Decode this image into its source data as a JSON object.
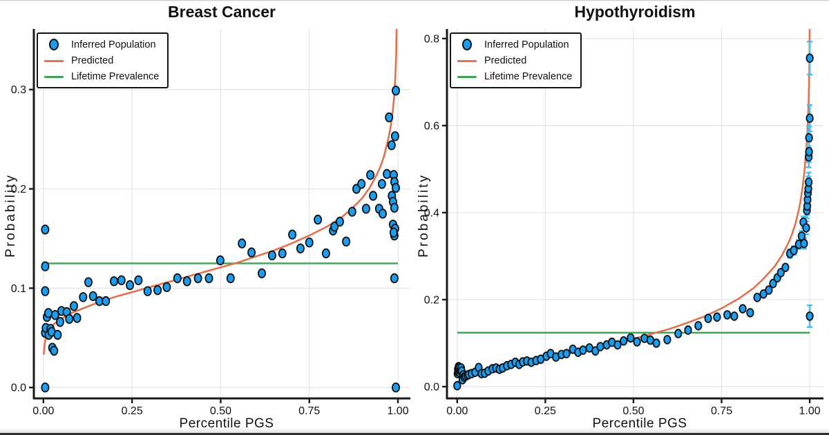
{
  "colors": {
    "marker_fill": "#1B9DF0",
    "marker_stroke": "#101010",
    "predicted_line": "#E0714C",
    "prevalence_line": "#3EA453",
    "error_bar": "#49BFF5",
    "grid": "#e3e3e3",
    "spine": "#1a1a1a"
  },
  "chart_data": [
    {
      "type": "scatter",
      "title": "Breast Cancer",
      "xlabel": "Percentile PGS",
      "ylabel": "Probability",
      "legend": [
        {
          "label": "Inferred Population",
          "kind": "marker",
          "color": "#1B9DF0"
        },
        {
          "label": "Predicted",
          "kind": "line",
          "color": "#E0714C"
        },
        {
          "label": "Lifetime Prevalence",
          "kind": "line",
          "color": "#3EA453"
        }
      ],
      "legend_position": "top-left",
      "grid": true,
      "xlim": [
        -0.027,
        1.035
      ],
      "ylim": [
        -0.011,
        0.361
      ],
      "xticks": {
        "values": [
          0,
          0.25,
          0.5,
          0.75,
          1.0
        ],
        "labels": [
          "0.00",
          "0.25",
          "0.50",
          "0.75",
          "1.00"
        ]
      },
      "yticks": {
        "values": [
          0,
          0.1,
          0.2,
          0.3
        ],
        "labels": [
          "0.0",
          "0.1",
          "0.2",
          "0.3"
        ]
      },
      "lifetime_prevalence": 0.125,
      "series": {
        "inferred_population": [
          [
            0.005,
            0.0
          ],
          [
            0.005,
            0.055
          ],
          [
            0.007,
            0.06
          ],
          [
            0.005,
            0.097
          ],
          [
            0.005,
            0.122
          ],
          [
            0.005,
            0.159
          ],
          [
            0.01,
            0.071
          ],
          [
            0.014,
            0.075
          ],
          [
            0.015,
            0.053
          ],
          [
            0.02,
            0.059
          ],
          [
            0.023,
            0.056
          ],
          [
            0.025,
            0.04
          ],
          [
            0.03,
            0.037
          ],
          [
            0.033,
            0.073
          ],
          [
            0.04,
            0.053
          ],
          [
            0.047,
            0.066
          ],
          [
            0.051,
            0.077
          ],
          [
            0.066,
            0.076
          ],
          [
            0.073,
            0.069
          ],
          [
            0.086,
            0.082
          ],
          [
            0.095,
            0.07
          ],
          [
            0.112,
            0.091
          ],
          [
            0.127,
            0.106
          ],
          [
            0.14,
            0.092
          ],
          [
            0.158,
            0.087
          ],
          [
            0.176,
            0.087
          ],
          [
            0.199,
            0.107
          ],
          [
            0.22,
            0.108
          ],
          [
            0.244,
            0.103
          ],
          [
            0.268,
            0.108
          ],
          [
            0.294,
            0.097
          ],
          [
            0.322,
            0.098
          ],
          [
            0.348,
            0.101
          ],
          [
            0.378,
            0.11
          ],
          [
            0.405,
            0.107
          ],
          [
            0.436,
            0.11
          ],
          [
            0.467,
            0.11
          ],
          [
            0.499,
            0.128
          ],
          [
            0.528,
            0.11
          ],
          [
            0.56,
            0.145
          ],
          [
            0.587,
            0.136
          ],
          [
            0.616,
            0.115
          ],
          [
            0.645,
            0.133
          ],
          [
            0.674,
            0.135
          ],
          [
            0.702,
            0.154
          ],
          [
            0.725,
            0.14
          ],
          [
            0.75,
            0.146
          ],
          [
            0.774,
            0.169
          ],
          [
            0.797,
            0.135
          ],
          [
            0.817,
            0.158
          ],
          [
            0.821,
            0.162
          ],
          [
            0.836,
            0.167
          ],
          [
            0.854,
            0.147
          ],
          [
            0.871,
            0.177
          ],
          [
            0.883,
            0.2
          ],
          [
            0.897,
            0.205
          ],
          [
            0.91,
            0.18
          ],
          [
            0.922,
            0.214
          ],
          [
            0.93,
            0.193
          ],
          [
            0.947,
            0.18
          ],
          [
            0.955,
            0.205
          ],
          [
            0.957,
            0.175
          ],
          [
            0.969,
            0.215
          ],
          [
            0.975,
            0.272
          ],
          [
            0.982,
            0.244
          ],
          [
            0.983,
            0.193
          ],
          [
            0.986,
            0.187
          ],
          [
            0.986,
            0.164
          ],
          [
            0.988,
            0.214
          ],
          [
            0.99,
            0.207
          ],
          [
            0.99,
            0.181
          ],
          [
            0.99,
            0.153
          ],
          [
            0.992,
            0.253
          ],
          [
            0.992,
            0.16
          ],
          [
            0.994,
            0.299
          ],
          [
            0.994,
            0.201
          ],
          [
            0.988,
            0.156
          ],
          [
            0.99,
            0.11
          ],
          [
            0.994,
            0.0
          ]
        ],
        "predicted": [
          [
            0.001,
            0.033
          ],
          [
            0.003,
            0.042
          ],
          [
            0.006,
            0.049
          ],
          [
            0.01,
            0.054
          ],
          [
            0.02,
            0.06
          ],
          [
            0.03,
            0.064
          ],
          [
            0.05,
            0.069
          ],
          [
            0.08,
            0.075
          ],
          [
            0.1,
            0.078
          ],
          [
            0.15,
            0.085
          ],
          [
            0.2,
            0.091
          ],
          [
            0.25,
            0.096
          ],
          [
            0.3,
            0.101
          ],
          [
            0.35,
            0.106
          ],
          [
            0.4,
            0.111
          ],
          [
            0.45,
            0.116
          ],
          [
            0.5,
            0.121
          ],
          [
            0.55,
            0.126
          ],
          [
            0.6,
            0.132
          ],
          [
            0.65,
            0.138
          ],
          [
            0.7,
            0.145
          ],
          [
            0.75,
            0.153
          ],
          [
            0.8,
            0.162
          ],
          [
            0.84,
            0.171
          ],
          [
            0.87,
            0.18
          ],
          [
            0.9,
            0.191
          ],
          [
            0.92,
            0.201
          ],
          [
            0.94,
            0.214
          ],
          [
            0.95,
            0.222
          ],
          [
            0.96,
            0.232
          ],
          [
            0.97,
            0.246
          ],
          [
            0.975,
            0.254
          ],
          [
            0.98,
            0.264
          ],
          [
            0.985,
            0.277
          ],
          [
            0.99,
            0.295
          ],
          [
            0.993,
            0.315
          ],
          [
            0.995,
            0.335
          ],
          [
            0.996,
            0.36
          ],
          [
            0.997,
            0.4
          ]
        ]
      },
      "error_bars": []
    },
    {
      "type": "scatter",
      "title": "Hypothyroidism",
      "xlabel": "Percentile PGS",
      "ylabel": "Probability",
      "legend": [
        {
          "label": "Inferred Population",
          "kind": "marker",
          "color": "#1B9DF0"
        },
        {
          "label": "Predicted",
          "kind": "line",
          "color": "#E0714C"
        },
        {
          "label": "Lifetime Prevalence",
          "kind": "line",
          "color": "#3EA453"
        }
      ],
      "legend_position": "top-left",
      "grid": true,
      "xlim": [
        -0.029,
        1.039
      ],
      "ylim": [
        -0.027,
        0.822
      ],
      "xticks": {
        "values": [
          0,
          0.25,
          0.5,
          0.75,
          1.0
        ],
        "labels": [
          "0.00",
          "0.25",
          "0.50",
          "0.75",
          "1.00"
        ]
      },
      "yticks": {
        "values": [
          0,
          0.2,
          0.4,
          0.6,
          0.8
        ],
        "labels": [
          "0.0",
          "0.2",
          "0.4",
          "0.6",
          "0.8"
        ]
      },
      "lifetime_prevalence": 0.124,
      "series": {
        "inferred_population": [
          [
            0.0,
            0.002
          ],
          [
            0.001,
            0.03
          ],
          [
            0.002,
            0.04
          ],
          [
            0.003,
            0.034
          ],
          [
            0.004,
            0.046
          ],
          [
            0.005,
            0.039
          ],
          [
            0.006,
            0.044
          ],
          [
            0.007,
            0.032
          ],
          [
            0.009,
            0.037
          ],
          [
            0.011,
            0.043
          ],
          [
            0.013,
            0.036
          ],
          [
            0.015,
            0.016
          ],
          [
            0.017,
            0.027
          ],
          [
            0.02,
            0.022
          ],
          [
            0.024,
            0.024
          ],
          [
            0.029,
            0.026
          ],
          [
            0.033,
            0.028
          ],
          [
            0.041,
            0.03
          ],
          [
            0.051,
            0.033
          ],
          [
            0.061,
            0.044
          ],
          [
            0.069,
            0.03
          ],
          [
            0.078,
            0.031
          ],
          [
            0.088,
            0.036
          ],
          [
            0.1,
            0.041
          ],
          [
            0.11,
            0.043
          ],
          [
            0.12,
            0.04
          ],
          [
            0.129,
            0.043
          ],
          [
            0.141,
            0.048
          ],
          [
            0.153,
            0.051
          ],
          [
            0.165,
            0.056
          ],
          [
            0.176,
            0.051
          ],
          [
            0.186,
            0.057
          ],
          [
            0.198,
            0.059
          ],
          [
            0.21,
            0.056
          ],
          [
            0.224,
            0.06
          ],
          [
            0.237,
            0.063
          ],
          [
            0.253,
            0.07
          ],
          [
            0.265,
            0.076
          ],
          [
            0.28,
            0.068
          ],
          [
            0.296,
            0.074
          ],
          [
            0.31,
            0.076
          ],
          [
            0.328,
            0.086
          ],
          [
            0.343,
            0.079
          ],
          [
            0.357,
            0.084
          ],
          [
            0.375,
            0.089
          ],
          [
            0.392,
            0.082
          ],
          [
            0.406,
            0.092
          ],
          [
            0.424,
            0.096
          ],
          [
            0.439,
            0.102
          ],
          [
            0.455,
            0.096
          ],
          [
            0.472,
            0.105
          ],
          [
            0.492,
            0.112
          ],
          [
            0.51,
            0.103
          ],
          [
            0.531,
            0.111
          ],
          [
            0.548,
            0.107
          ],
          [
            0.565,
            0.1
          ],
          [
            0.596,
            0.108
          ],
          [
            0.627,
            0.122
          ],
          [
            0.655,
            0.13
          ],
          [
            0.684,
            0.14
          ],
          [
            0.712,
            0.157
          ],
          [
            0.737,
            0.16
          ],
          [
            0.766,
            0.165
          ],
          [
            0.786,
            0.162
          ],
          [
            0.81,
            0.179
          ],
          [
            0.831,
            0.17
          ],
          [
            0.851,
            0.205
          ],
          [
            0.869,
            0.213
          ],
          [
            0.884,
            0.222
          ],
          [
            0.896,
            0.237
          ],
          [
            0.908,
            0.25
          ],
          [
            0.918,
            0.262
          ],
          [
            0.931,
            0.274
          ],
          [
            0.944,
            0.306
          ],
          [
            0.955,
            0.313
          ],
          [
            0.969,
            0.327
          ],
          [
            0.977,
            0.346
          ],
          [
            0.982,
            0.378
          ],
          [
            0.984,
            0.329
          ],
          [
            0.99,
            0.365
          ],
          [
            0.992,
            0.405
          ],
          [
            0.993,
            0.415
          ],
          [
            0.994,
            0.43
          ],
          [
            0.995,
            0.445
          ],
          [
            0.996,
            0.455
          ],
          [
            0.997,
            0.47
          ],
          [
            0.997,
            0.528
          ],
          [
            0.998,
            0.54
          ],
          [
            0.998,
            0.572
          ],
          [
            1.0,
            0.617
          ],
          [
            1.0,
            0.755
          ],
          [
            1.0,
            0.162
          ]
        ],
        "predicted": [
          [
            0.0,
            0.01
          ],
          [
            0.02,
            0.021
          ],
          [
            0.05,
            0.03
          ],
          [
            0.1,
            0.04
          ],
          [
            0.15,
            0.049
          ],
          [
            0.2,
            0.057
          ],
          [
            0.25,
            0.065
          ],
          [
            0.3,
            0.074
          ],
          [
            0.35,
            0.082
          ],
          [
            0.4,
            0.091
          ],
          [
            0.45,
            0.1
          ],
          [
            0.5,
            0.11
          ],
          [
            0.55,
            0.121
          ],
          [
            0.6,
            0.132
          ],
          [
            0.65,
            0.146
          ],
          [
            0.7,
            0.161
          ],
          [
            0.75,
            0.18
          ],
          [
            0.8,
            0.203
          ],
          [
            0.84,
            0.226
          ],
          [
            0.87,
            0.249
          ],
          [
            0.9,
            0.276
          ],
          [
            0.92,
            0.3
          ],
          [
            0.94,
            0.331
          ],
          [
            0.95,
            0.351
          ],
          [
            0.96,
            0.376
          ],
          [
            0.97,
            0.41
          ],
          [
            0.975,
            0.432
          ],
          [
            0.98,
            0.459
          ],
          [
            0.985,
            0.494
          ],
          [
            0.99,
            0.54
          ],
          [
            0.993,
            0.578
          ],
          [
            0.995,
            0.612
          ],
          [
            0.997,
            0.66
          ],
          [
            0.998,
            0.695
          ],
          [
            0.999,
            0.745
          ],
          [
            1.0,
            0.84
          ]
        ]
      },
      "error_bars": [
        [
          1.0,
          0.755,
          0.038
        ],
        [
          1.0,
          0.617,
          0.03
        ],
        [
          0.998,
          0.572,
          0.026
        ],
        [
          0.998,
          0.54,
          0.024
        ],
        [
          0.997,
          0.528,
          0.024
        ],
        [
          0.997,
          0.47,
          0.022
        ],
        [
          0.996,
          0.455,
          0.028
        ],
        [
          0.995,
          0.445,
          0.02
        ],
        [
          0.994,
          0.43,
          0.022
        ],
        [
          0.993,
          0.415,
          0.02
        ],
        [
          0.992,
          0.405,
          0.018
        ],
        [
          0.99,
          0.365,
          0.015
        ],
        [
          0.982,
          0.378,
          0.013
        ],
        [
          0.984,
          0.329,
          0.012
        ],
        [
          0.977,
          0.346,
          0.012
        ],
        [
          0.969,
          0.327,
          0.01
        ],
        [
          0.955,
          0.313,
          0.01
        ],
        [
          0.944,
          0.306,
          0.01
        ],
        [
          1.0,
          0.162,
          0.025
        ]
      ]
    }
  ]
}
